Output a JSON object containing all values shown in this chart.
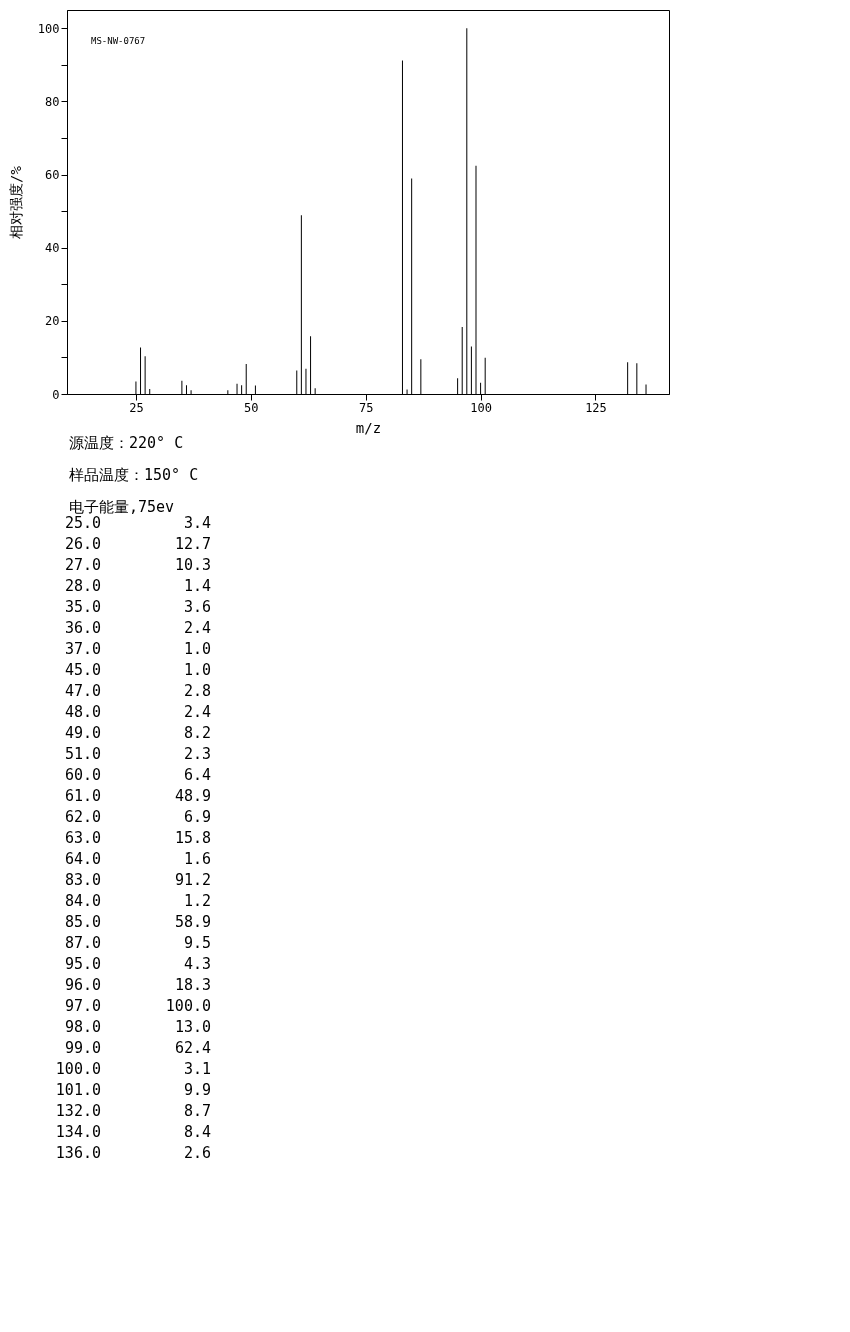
{
  "chart_data": {
    "type": "bar",
    "xlabel": "m/z",
    "ylabel": "相对强度/%",
    "annotations": [
      "MS-NW-0767",
      "源温度：220° C",
      "样品温度：150° C",
      "电子能量,75ev",
      "25.0",
      "3.4",
      "26.0",
      "12.7",
      "27.0",
      "10.3",
      "28.0",
      "1.4",
      "35.0",
      "3.6",
      "36.0",
      "2.4",
      "37.0",
      "1.0",
      "45.0",
      "1.0",
      "47.0",
      "2.8",
      "48.0",
      "2.4",
      "49.0",
      "8.2",
      "51.0",
      "2.3",
      "60.0",
      "6.4",
      "61.0",
      "48.9",
      "62.0",
      "6.9",
      "63.0",
      "15.8",
      "64.0",
      "1.6",
      "83.0",
      "91.2",
      "84.0",
      "1.2",
      "85.0",
      "58.9",
      "87.0",
      "9.5",
      "95.0",
      "4.3",
      "96.0",
      "18.3",
      "97.0",
      "100.0",
      "98.0",
      "13.0",
      "99.0",
      "62.4",
      "100.0",
      "3.1",
      "101.0",
      "9.9",
      "132.0",
      "8.7",
      "134.0",
      "8.4",
      "136.0",
      "2.6"
    ],
    "x": [
      25,
      26,
      27,
      28,
      35,
      36,
      37,
      45,
      47,
      48,
      49,
      51,
      60,
      61,
      62,
      63,
      64,
      83,
      84,
      85,
      87,
      95,
      96,
      97,
      98,
      99,
      100,
      101,
      132,
      134,
      136
    ],
    "values": [
      3.4,
      12.7,
      10.3,
      1.4,
      3.6,
      2.4,
      1.0,
      1.0,
      2.8,
      2.4,
      8.2,
      2.3,
      6.4,
      48.9,
      6.9,
      15.8,
      1.6,
      91.2,
      1.2,
      58.9,
      9.5,
      4.3,
      18.3,
      100.0,
      13.0,
      62.4,
      3.1,
      9.9,
      8.7,
      8.4,
      2.6
    ],
    "color": "#000000",
    "xlim": [
      10,
      141
    ],
    "xticks": [
      25,
      50,
      75,
      100,
      125
    ],
    "ylim": [
      0,
      105
    ],
    "yticks": [
      0,
      {
        "value": 10,
        "label": null
      },
      20,
      {
        "value": 30,
        "label": null
      },
      40,
      {
        "value": 50,
        "label": null
      },
      60,
      {
        "value": 70,
        "label": null
      },
      80,
      {
        "value": 90,
        "label": null
      },
      100
    ]
  }
}
